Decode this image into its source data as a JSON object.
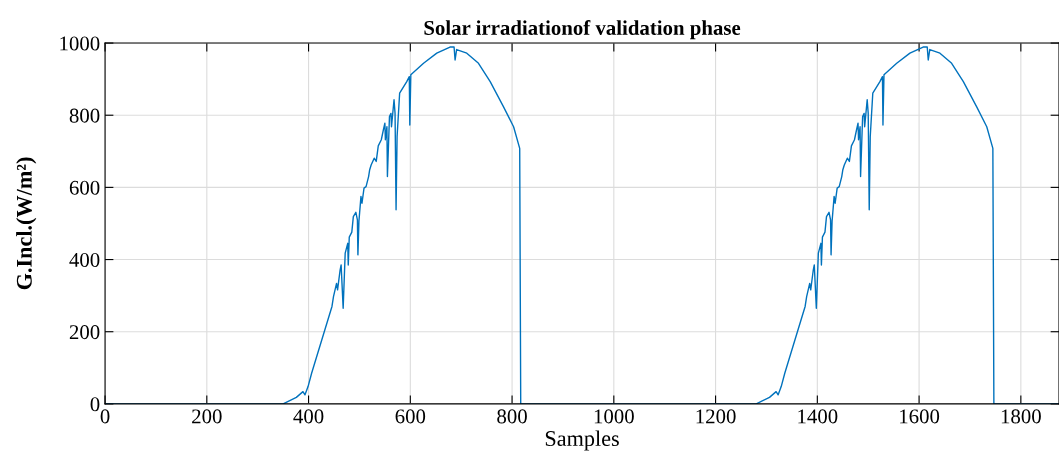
{
  "chart_data": {
    "type": "line",
    "title": "Solar irradiationof validation phase",
    "xlabel": "Samples",
    "ylabel": "G.Incl.(W/m²)",
    "series": [
      {
        "color": "#0072bd",
        "x": [
          0,
          350,
          376,
          389,
          393,
          399,
          406,
          446,
          449,
          455,
          457,
          462,
          464,
          468,
          472,
          477,
          478,
          480,
          485,
          488,
          493,
          496,
          497,
          499,
          503,
          505,
          509,
          513,
          518,
          520,
          523,
          529,
          533,
          537,
          543,
          547,
          550,
          551,
          554,
          555,
          559,
          562,
          563,
          568,
          570,
          572,
          574,
          579,
          593,
          598,
          599,
          601,
          626,
          652,
          678,
          686,
          688,
          691,
          711,
          734,
          757,
          783,
          803,
          815,
          817,
          1280,
          1306,
          1319,
          1323,
          1329,
          1336,
          1376,
          1379,
          1385,
          1387,
          1392,
          1394,
          1398,
          1402,
          1407,
          1408,
          1410,
          1415,
          1418,
          1423,
          1426,
          1427,
          1429,
          1433,
          1435,
          1439,
          1443,
          1448,
          1450,
          1453,
          1459,
          1463,
          1467,
          1473,
          1477,
          1480,
          1481,
          1484,
          1485,
          1489,
          1492,
          1493,
          1498,
          1500,
          1502,
          1504,
          1509,
          1523,
          1528,
          1529,
          1531,
          1556,
          1582,
          1608,
          1616,
          1618,
          1621,
          1641,
          1664,
          1687,
          1713,
          1733,
          1745,
          1747,
          1875
        ],
        "values": [
          0,
          0,
          18,
          34,
          25,
          48,
          85,
          270,
          297,
          334,
          316,
          371,
          385,
          265,
          418,
          445,
          385,
          462,
          476,
          519,
          531,
          510,
          413,
          506,
          575,
          556,
          598,
          602,
          630,
          648,
          662,
          681,
          672,
          715,
          732,
          759,
          778,
          732,
          768,
          630,
          796,
          805,
          768,
          843,
          805,
          538,
          741,
          861,
          893,
          907,
          773,
          912,
          944,
          972,
          989,
          989,
          953,
          982,
          972,
          944,
          893,
          824,
          768,
          708,
          0,
          0,
          18,
          34,
          25,
          48,
          85,
          270,
          297,
          334,
          316,
          371,
          385,
          265,
          418,
          445,
          385,
          462,
          476,
          519,
          531,
          510,
          413,
          506,
          575,
          556,
          598,
          602,
          630,
          648,
          662,
          681,
          672,
          715,
          732,
          759,
          778,
          732,
          768,
          630,
          796,
          805,
          768,
          843,
          805,
          538,
          741,
          861,
          893,
          907,
          773,
          912,
          944,
          972,
          989,
          989,
          953,
          982,
          972,
          944,
          893,
          824,
          768,
          708,
          0,
          0
        ]
      }
    ],
    "xlim": [
      0,
      1875
    ],
    "xticks": [
      0,
      200,
      400,
      600,
      800,
      1000,
      1200,
      1400,
      1600,
      1800
    ],
    "ylim": [
      0,
      1000
    ],
    "yticks": [
      0,
      200,
      400,
      600,
      800,
      1000
    ],
    "grid": true,
    "marker": "none",
    "line_style": "solid"
  }
}
